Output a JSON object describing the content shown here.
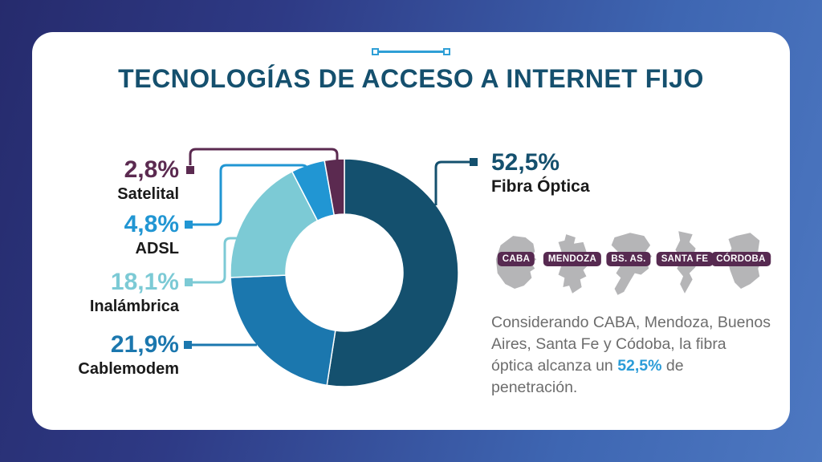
{
  "header": {
    "title": "TECNOLOGÍAS DE ACCESO A INTERNET FIJO"
  },
  "chart_data": {
    "type": "pie",
    "subtype": "donut",
    "title": "Tecnologías de acceso a internet fijo",
    "unit": "%",
    "start_angle_deg": 0,
    "direction": "clockwise",
    "legend_position": "callout-labels",
    "slices": [
      {
        "label": "Fibra Óptica",
        "value": 52.5,
        "display": "52,5%",
        "color": "#14506E"
      },
      {
        "label": "Cablemodem",
        "value": 21.9,
        "display": "21,9%",
        "color": "#1B77AE"
      },
      {
        "label": "Inalámbrica",
        "value": 18.1,
        "display": "18,1%",
        "color": "#7CCAD5"
      },
      {
        "label": "ADSL",
        "value": 4.8,
        "display": "4,8%",
        "color": "#2196D3"
      },
      {
        "label": "Satelital",
        "value": 2.8,
        "display": "2,8%",
        "color": "#5B2A50"
      }
    ]
  },
  "provinces": {
    "badges": [
      "CABA",
      "MENDOZA",
      "BS. AS.",
      "SANTA FE",
      "CÓRDOBA"
    ],
    "silhouette_color": "#B5B5B7",
    "badge_color": "#572A51"
  },
  "note": {
    "before": "Considerando CABA, Mendoza, Buenos Aires, Santa Fe y Códoba, la fibra óptica alcanza un ",
    "highlight": "52,5%",
    "after": " de penetración.",
    "highlight_color": "#2B9CD8"
  },
  "style": {
    "background_left": "#262B6D",
    "background_right": "#4D78C1",
    "card_color": "#FFFFFF",
    "title_color": "#15506E",
    "divider_color": "#2F9FD6",
    "label_name_color": "#1A1A1A",
    "note_text_color": "#6D6D6D"
  }
}
